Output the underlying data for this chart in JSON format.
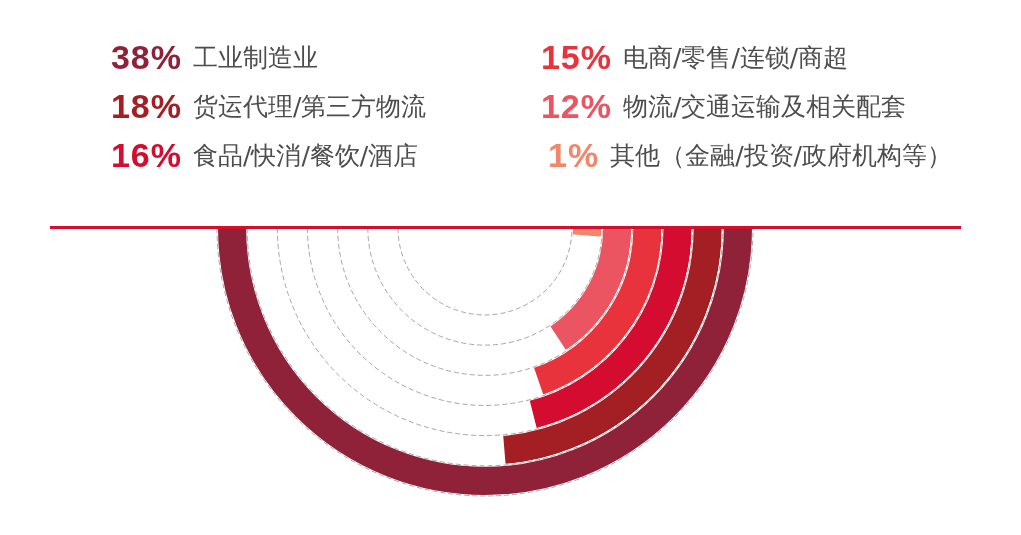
{
  "chart_data": {
    "type": "other",
    "categories": [
      "工业制造业",
      "货运代理/第三方物流",
      "食品/快消/餐饮/酒店",
      "电商/零售/连锁/商超",
      "物流/交通运输及相关配套",
      "其他（金融/投资/政府机构等）"
    ],
    "values": [
      38,
      18,
      16,
      15,
      12,
      1
    ],
    "value_labels": [
      "38%",
      "18%",
      "16%",
      "15%",
      "12%",
      "1%"
    ],
    "colors": [
      "#8f2239",
      "#a41f24",
      "#d40c2f",
      "#e8333d",
      "#ea5561",
      "#ef876c"
    ]
  }
}
